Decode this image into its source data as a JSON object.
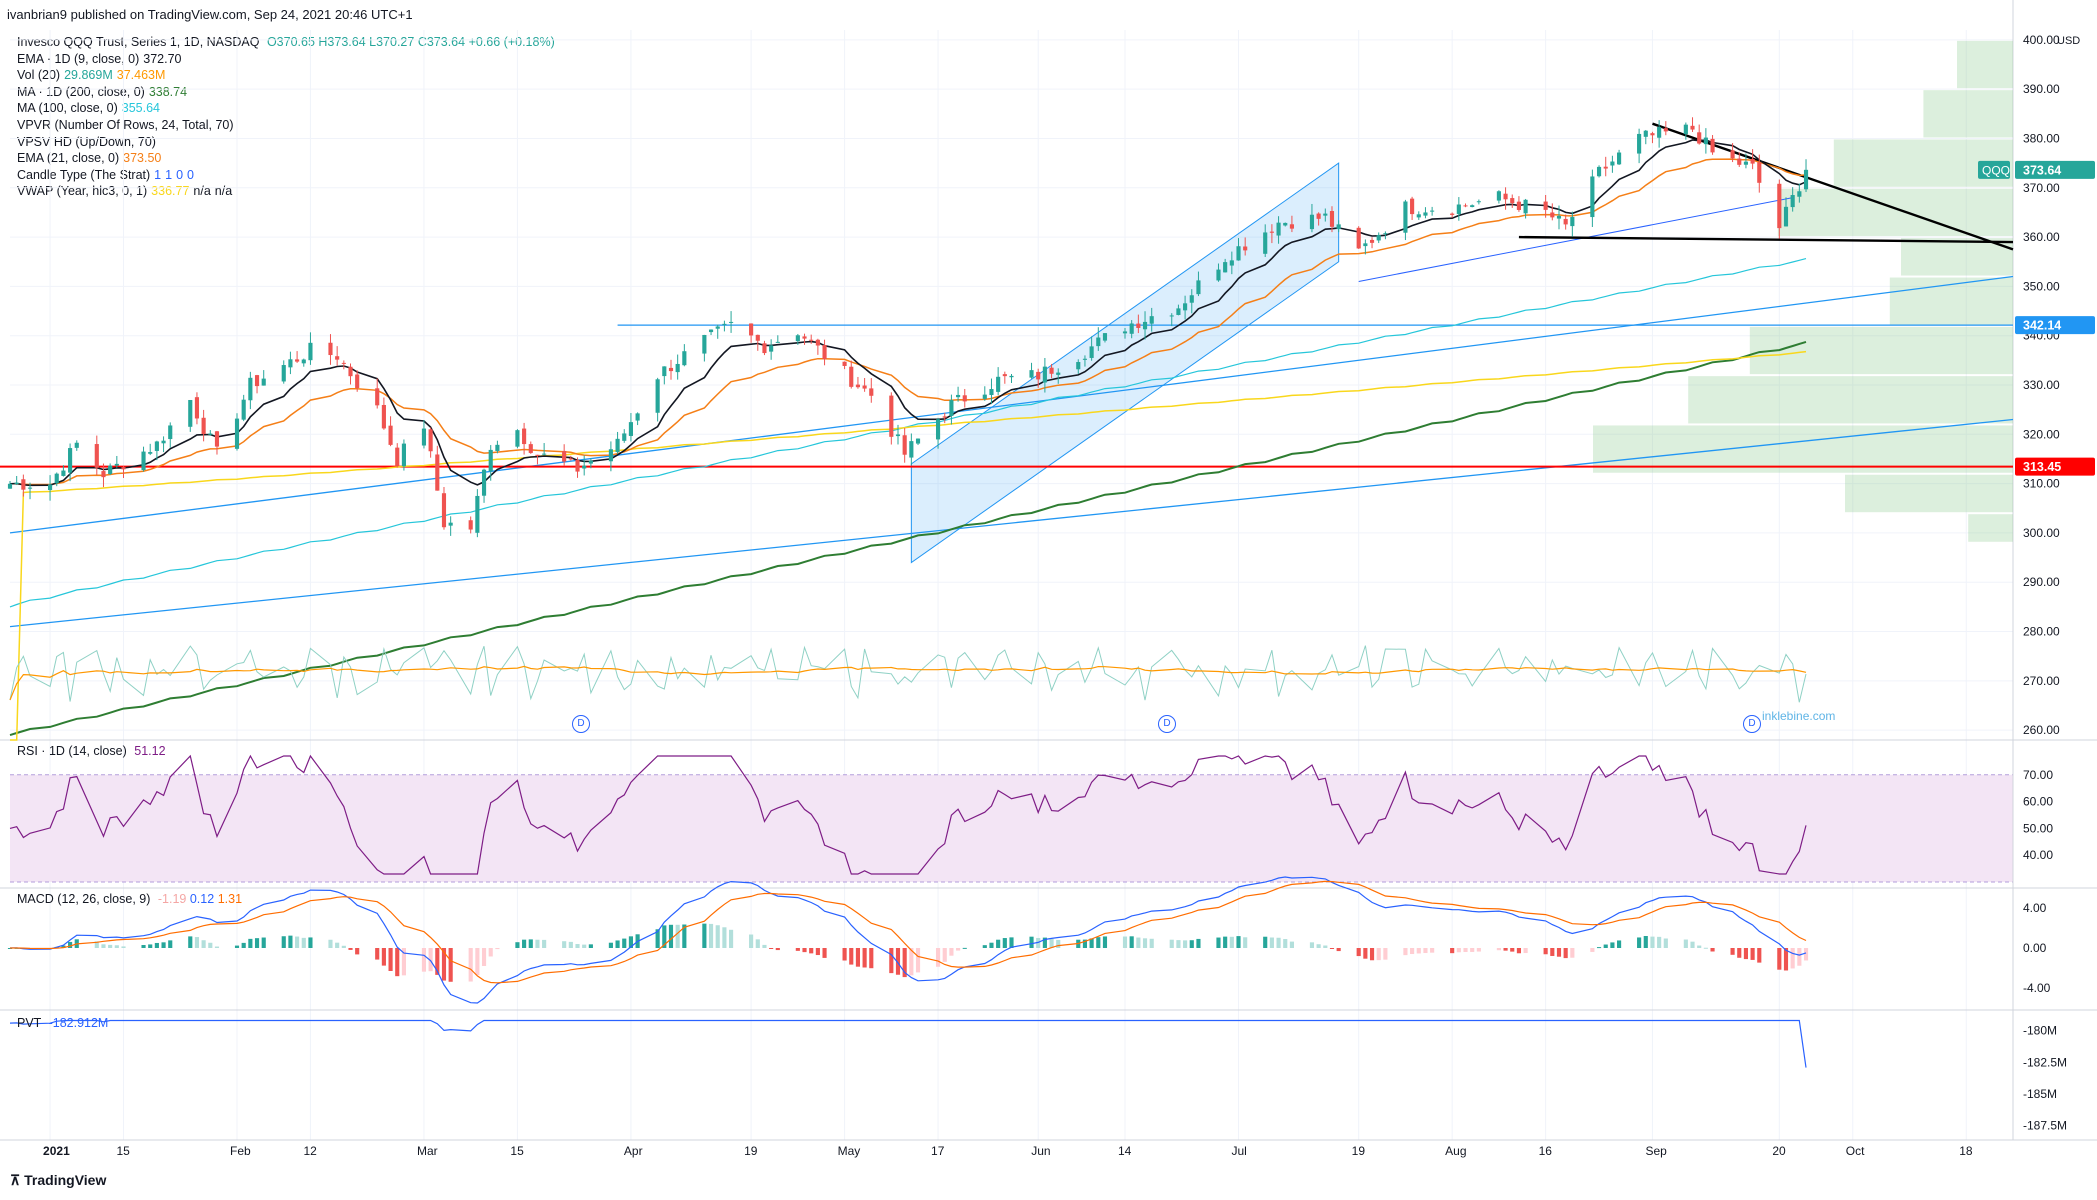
{
  "header": {
    "publisher": "ivanbrian9 published on TradingView.com, Sep 24, 2021 20:46 UTC+1"
  },
  "legend": {
    "main": {
      "name": "Invesco QQQ Trust, Series 1, 1D, NASDAQ",
      "o": "O370.65",
      "h": "H373.64",
      "l": "L370.27",
      "c": "C373.64",
      "chg": "+0.66 (+0.18%)"
    },
    "indicators": [
      {
        "label": "EMA · 1D (9, close, 0)",
        "values": [
          "372.70"
        ],
        "colors": [
          "#131722"
        ]
      },
      {
        "label": "Vol (20)",
        "values": [
          "29.869M",
          "37.463M"
        ],
        "colors": [
          "#26a69a",
          "#ff9800"
        ]
      },
      {
        "label": "MA · 1D (200, close, 0)",
        "values": [
          "338.74"
        ],
        "colors": [
          "#2e7d32"
        ]
      },
      {
        "label": "MA (100, close, 0)",
        "values": [
          "355.64"
        ],
        "colors": [
          "#26c6da"
        ]
      },
      {
        "label": "VPVR (Number Of Rows, 24, Total, 70)",
        "values": [],
        "colors": []
      },
      {
        "label": "VPSV HD (Up/Down, 70)",
        "values": [],
        "colors": []
      },
      {
        "label": "EMA (21, close, 0)",
        "values": [
          "373.50"
        ],
        "colors": [
          "#f57f17"
        ]
      },
      {
        "label": "Candle Type (The Strat)",
        "values": [
          "1",
          "1",
          "0",
          "0"
        ],
        "colors": [
          "#2962ff",
          "#2962ff",
          "#2962ff",
          "#2962ff"
        ]
      },
      {
        "label": "VWAP (Year, hlc3, 0, 1)",
        "values": [
          "336.77",
          "n/a",
          "n/a"
        ],
        "colors": [
          "#f9d71c",
          "#131722",
          "#131722"
        ]
      }
    ]
  },
  "axis": {
    "currency": "USD",
    "price_ticks": [
      "400.00",
      "390.00",
      "380.00",
      "370.00",
      "360.00",
      "350.00",
      "340.00",
      "330.00",
      "320.00",
      "310.00",
      "300.00",
      "290.00",
      "280.00",
      "270.00",
      "260.00"
    ],
    "rsi_ticks": [
      "70.00",
      "60.00",
      "50.00",
      "40.00"
    ],
    "macd_ticks": [
      "4.00",
      "0.00",
      "-4.00"
    ],
    "pvt_ticks": [
      "-180M",
      "-182.5M",
      "-185M",
      "-187.5M"
    ],
    "date_ticks": [
      "2021",
      "15",
      "Feb",
      "12",
      "Mar",
      "15",
      "Apr",
      "19",
      "May",
      "17",
      "Jun",
      "14",
      "Jul",
      "19",
      "Aug",
      "16",
      "Sep",
      "20",
      "Oct",
      "18"
    ]
  },
  "badges": {
    "ticker": "QQQ",
    "last": "373.64",
    "level1": "342.14",
    "level2": "313.45"
  },
  "panes": {
    "rsi": {
      "label": "RSI · 1D (14, close)",
      "value": "51.12"
    },
    "macd": {
      "label": "MACD (12, 26, close, 9)",
      "values": [
        "-1.19",
        "0.12",
        "1.31"
      ]
    },
    "pvt": {
      "label": "PVT",
      "value": "-182.912M"
    }
  },
  "dividend_marker": "D",
  "watermark": "inklebine.com",
  "footer": {
    "brand": "TradingView"
  },
  "colors": {
    "up": "#26a69a",
    "down": "#ef5350",
    "rsi": "#7e1d86",
    "macd": "#2962ff",
    "signal": "#ff6d00",
    "grid": "#f0f3fa",
    "support": "#ff0000"
  },
  "chart_data": {
    "type": "candlestick",
    "title": "Invesco QQQ Trust, Series 1, 1D, NASDAQ",
    "ylim": [
      258,
      402
    ],
    "x_range": [
      "2020-12-29",
      "2021-10-25"
    ],
    "price_path": [
      [
        "2020-12-29",
        310
      ],
      [
        "2021-01-04",
        310
      ],
      [
        "2021-01-08",
        318
      ],
      [
        "2021-01-12",
        312
      ],
      [
        "2021-01-20",
        318
      ],
      [
        "2021-01-25",
        327
      ],
      [
        "2021-01-29",
        316
      ],
      [
        "2021-02-03",
        330
      ],
      [
        "2021-02-12",
        337
      ],
      [
        "2021-02-16",
        336
      ],
      [
        "2021-02-22",
        325
      ],
      [
        "2021-02-25",
        315
      ],
      [
        "2021-03-01",
        322
      ],
      [
        "2021-03-04",
        302
      ],
      [
        "2021-03-08",
        301
      ],
      [
        "2021-03-11",
        318
      ],
      [
        "2021-03-15",
        321
      ],
      [
        "2021-03-18",
        316
      ],
      [
        "2021-03-24",
        313
      ],
      [
        "2021-03-30",
        318
      ],
      [
        "2021-04-05",
        332
      ],
      [
        "2021-04-12",
        339
      ],
      [
        "2021-04-16",
        342
      ],
      [
        "2021-04-21",
        338
      ],
      [
        "2021-04-26",
        341
      ],
      [
        "2021-04-30",
        336
      ],
      [
        "2021-05-05",
        330
      ],
      [
        "2021-05-07",
        328
      ],
      [
        "2021-05-12",
        316
      ],
      [
        "2021-05-19",
        326
      ],
      [
        "2021-05-26",
        331
      ],
      [
        "2021-06-01",
        332
      ],
      [
        "2021-06-07",
        336
      ],
      [
        "2021-06-14",
        342
      ],
      [
        "2021-06-22",
        346
      ],
      [
        "2021-06-29",
        356
      ],
      [
        "2021-07-07",
        363
      ],
      [
        "2021-07-14",
        364
      ],
      [
        "2021-07-19",
        357
      ],
      [
        "2021-07-26",
        366
      ],
      [
        "2021-08-02",
        366
      ],
      [
        "2021-08-09",
        368
      ],
      [
        "2021-08-16",
        365
      ],
      [
        "2021-08-19",
        362
      ],
      [
        "2021-08-24",
        373
      ],
      [
        "2021-08-30",
        380
      ],
      [
        "2021-09-07",
        382
      ],
      [
        "2021-09-10",
        377
      ],
      [
        "2021-09-16",
        374
      ],
      [
        "2021-09-20",
        362
      ],
      [
        "2021-09-24",
        373.64
      ]
    ],
    "series": [
      {
        "name": "EMA · 1D (9, close, 0)",
        "last": 372.7,
        "color": "#131722"
      },
      {
        "name": "EMA (21, close, 0)",
        "last": 373.5,
        "color": "#f57f17"
      },
      {
        "name": "MA (100, close, 0)",
        "last": 355.64,
        "color": "#26c6da"
      },
      {
        "name": "MA · 1D (200, close, 0)",
        "last": 338.74,
        "color": "#2e7d32"
      },
      {
        "name": "VWAP (Year, hlc3, 0, 1)",
        "last": 336.77,
        "color": "#f9d71c"
      }
    ],
    "horizontal_levels": [
      342.14,
      313.45
    ],
    "rsi": {
      "range": [
        30,
        80
      ],
      "band": [
        30,
        70
      ],
      "last": 51.12
    },
    "macd": {
      "macd": -1.19,
      "signal": 0.12,
      "histogram": 1.31
    },
    "pvt_last_M": -182.912
  }
}
